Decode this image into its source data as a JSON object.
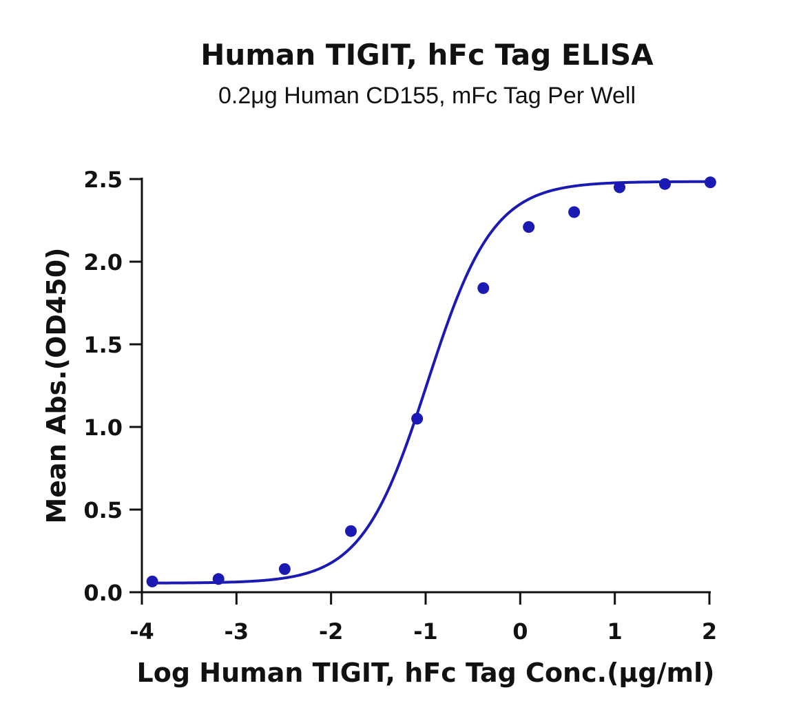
{
  "chart_data": {
    "type": "scatter",
    "title": "Human TIGIT, hFc Tag ELISA",
    "subtitle": "0.2μg Human CD155, mFc Tag Per Well",
    "xlabel": "Log Human TIGIT,  hFc Tag Conc.(μg/ml)",
    "ylabel": "Mean Abs.(OD450)",
    "xlim": [
      -4,
      2
    ],
    "ylim": [
      0,
      2.5
    ],
    "x_ticks": [
      -4,
      -3,
      -2,
      -1,
      0,
      1,
      2
    ],
    "x_tick_labels": [
      "-4",
      "-3",
      "-2",
      "-1",
      "0",
      "1",
      "2"
    ],
    "y_ticks": [
      0,
      0.5,
      1.0,
      1.5,
      2.0,
      2.5
    ],
    "y_tick_labels": [
      "0.0",
      "0.5",
      "1.0",
      "1.5",
      "2.0",
      "2.5"
    ],
    "grid": false,
    "series": [
      {
        "points": [
          {
            "x": -3.89,
            "y": 0.065
          },
          {
            "x": -3.19,
            "y": 0.08
          },
          {
            "x": -2.49,
            "y": 0.14
          },
          {
            "x": -1.79,
            "y": 0.37
          },
          {
            "x": -1.09,
            "y": 1.05
          },
          {
            "x": -0.39,
            "y": 1.84
          },
          {
            "x": 0.09,
            "y": 2.21
          },
          {
            "x": 0.57,
            "y": 2.3
          },
          {
            "x": 1.05,
            "y": 2.45
          },
          {
            "x": 1.53,
            "y": 2.47
          },
          {
            "x": 2.01,
            "y": 2.48
          }
        ],
        "fit": {
          "model": "4PL",
          "bottom": 0.055,
          "top": 2.485,
          "logEC50": -0.98,
          "hill": 1.25,
          "x_range": [
            -3.89,
            2.01
          ]
        },
        "color": "#1b1bb3"
      }
    ]
  }
}
